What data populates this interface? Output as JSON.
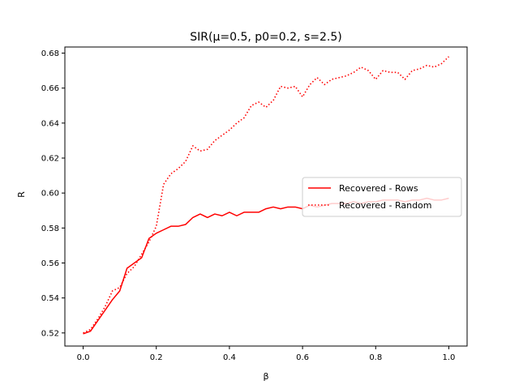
{
  "chart_data": {
    "type": "line",
    "title": "SIR(μ=0.5, p0=0.2, s=2.5)",
    "xlabel": "β",
    "ylabel": "R",
    "xlim": [
      -0.05,
      1.05
    ],
    "ylim": [
      0.5125,
      0.6835
    ],
    "x_ticks": [
      0.0,
      0.2,
      0.4,
      0.6,
      0.8,
      1.0
    ],
    "x_tick_labels": [
      "0.0",
      "0.2",
      "0.4",
      "0.6",
      "0.8",
      "1.0"
    ],
    "y_ticks": [
      0.52,
      0.54,
      0.56,
      0.58,
      0.6,
      0.62,
      0.64,
      0.66,
      0.68
    ],
    "y_tick_labels": [
      "0.52",
      "0.54",
      "0.56",
      "0.58",
      "0.60",
      "0.62",
      "0.64",
      "0.66",
      "0.68"
    ],
    "grid": false,
    "legend_position": "center-right",
    "series": [
      {
        "name": "Recovered - Rows",
        "color": "#ff0000",
        "style": "solid",
        "x": [
          0.0,
          0.02,
          0.04,
          0.06,
          0.08,
          0.1,
          0.12,
          0.14,
          0.16,
          0.18,
          0.2,
          0.22,
          0.24,
          0.26,
          0.28,
          0.3,
          0.32,
          0.34,
          0.36,
          0.38,
          0.4,
          0.42,
          0.44,
          0.46,
          0.48,
          0.5,
          0.52,
          0.54,
          0.56,
          0.58,
          0.6,
          0.62,
          0.64,
          0.66,
          0.68,
          0.7,
          0.72,
          0.74,
          0.76,
          0.78,
          0.8,
          0.82,
          0.84,
          0.86,
          0.88,
          0.9,
          0.92,
          0.94,
          0.96,
          0.98,
          1.0
        ],
        "y": [
          0.5195,
          0.521,
          0.527,
          0.533,
          0.539,
          0.544,
          0.557,
          0.56,
          0.563,
          0.574,
          0.577,
          0.579,
          0.581,
          0.581,
          0.582,
          0.586,
          0.588,
          0.586,
          0.588,
          0.587,
          0.589,
          0.587,
          0.589,
          0.589,
          0.589,
          0.591,
          0.592,
          0.591,
          0.592,
          0.592,
          0.591,
          0.593,
          0.592,
          0.593,
          0.594,
          0.594,
          0.594,
          0.595,
          0.594,
          0.595,
          0.595,
          0.596,
          0.596,
          0.596,
          0.595,
          0.596,
          0.596,
          0.597,
          0.596,
          0.596,
          0.597
        ]
      },
      {
        "name": "Recovered - Random",
        "color": "#ff0000",
        "style": "dotted",
        "x": [
          0.0,
          0.02,
          0.04,
          0.06,
          0.08,
          0.1,
          0.12,
          0.14,
          0.16,
          0.18,
          0.2,
          0.22,
          0.24,
          0.26,
          0.28,
          0.3,
          0.32,
          0.34,
          0.36,
          0.38,
          0.4,
          0.42,
          0.44,
          0.46,
          0.48,
          0.5,
          0.52,
          0.54,
          0.56,
          0.58,
          0.6,
          0.62,
          0.64,
          0.66,
          0.68,
          0.7,
          0.72,
          0.74,
          0.76,
          0.78,
          0.8,
          0.82,
          0.84,
          0.86,
          0.88,
          0.9,
          0.92,
          0.94,
          0.96,
          0.98,
          1.0
        ],
        "y": [
          0.52,
          0.522,
          0.528,
          0.535,
          0.544,
          0.546,
          0.554,
          0.558,
          0.565,
          0.572,
          0.581,
          0.605,
          0.611,
          0.614,
          0.618,
          0.627,
          0.624,
          0.625,
          0.63,
          0.633,
          0.636,
          0.64,
          0.643,
          0.65,
          0.652,
          0.649,
          0.653,
          0.661,
          0.66,
          0.661,
          0.655,
          0.662,
          0.666,
          0.662,
          0.665,
          0.666,
          0.667,
          0.669,
          0.672,
          0.67,
          0.665,
          0.67,
          0.669,
          0.669,
          0.665,
          0.67,
          0.671,
          0.673,
          0.672,
          0.674,
          0.678
        ]
      }
    ]
  }
}
